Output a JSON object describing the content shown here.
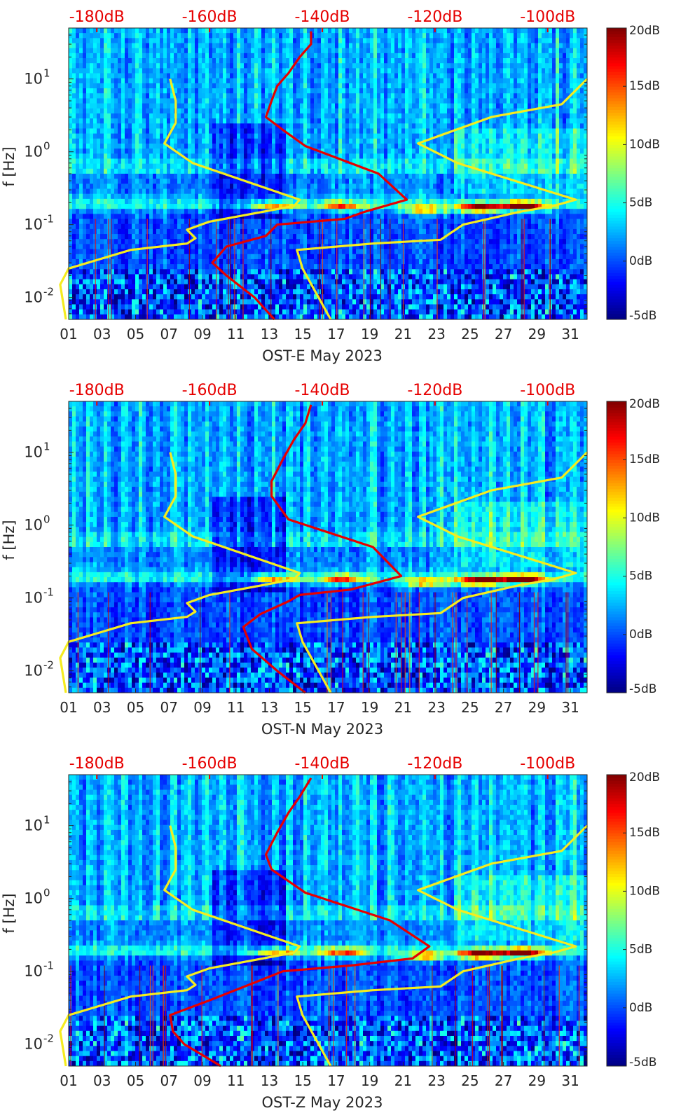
{
  "chart_data": [
    {
      "type": "heatmap",
      "title": "",
      "xlabel": "OST-E May 2023",
      "ylabel": "f [Hz]",
      "xticks": [
        "01",
        "03",
        "05",
        "07",
        "09",
        "11",
        "13",
        "15",
        "17",
        "19",
        "21",
        "23",
        "25",
        "27",
        "29",
        "31"
      ],
      "xlim": [
        1,
        32
      ],
      "yscale": "log",
      "ylim": [
        0.005,
        50
      ],
      "yticks": [
        "10^{-2}",
        "10^{-1}",
        "10^{0}",
        "10^{1}"
      ],
      "colorbar": {
        "ticks": [
          "-5dB",
          "0dB",
          "5dB",
          "10dB",
          "15dB",
          "20dB"
        ],
        "range": [
          -5,
          20
        ],
        "colormap": "jet"
      },
      "top_axis": {
        "ticks": [
          "-180dB",
          "-160dB",
          "-140dB",
          "-120dB",
          "-100dB"
        ],
        "range": [
          -185,
          -93
        ],
        "color": "#e60000"
      },
      "series": [
        {
          "color": "#f5ec1f",
          "points": [
            [
              -185.5,
              0.005
            ],
            [
              -186.5,
              0.015
            ],
            [
              -185,
              0.025
            ],
            [
              -174,
              0.045
            ],
            [
              -164,
              0.055
            ],
            [
              -162.5,
              0.065
            ],
            [
              -164,
              0.085
            ],
            [
              -160,
              0.11
            ],
            [
              -145,
              0.18
            ],
            [
              -144,
              0.22
            ],
            [
              -163,
              0.7
            ],
            [
              -168,
              1.3
            ],
            [
              -166,
              2.5
            ],
            [
              -166,
              5
            ],
            [
              -167,
              10
            ]
          ]
        },
        {
          "color": "#f5ec1f",
          "points": [
            [
              -138.5,
              0.005
            ],
            [
              -143.5,
              0.025
            ],
            [
              -144.5,
              0.045
            ],
            [
              -131,
              0.055
            ],
            [
              -119,
              0.062
            ],
            [
              -115,
              0.1
            ],
            [
              -105,
              0.15
            ],
            [
              -99,
              0.18
            ],
            [
              -95,
              0.22
            ],
            [
              -116,
              0.7
            ],
            [
              -123,
              1.3
            ],
            [
              -110,
              3
            ],
            [
              -97.5,
              4.5
            ],
            [
              -93,
              10
            ]
          ]
        },
        {
          "color": "#e60000",
          "points": [
            [
              -148.5,
              0.005
            ],
            [
              -152,
              0.01
            ],
            [
              -157,
              0.02
            ],
            [
              -159.5,
              0.03
            ],
            [
              -157,
              0.05
            ],
            [
              -150,
              0.07
            ],
            [
              -148,
              0.1
            ],
            [
              -136,
              0.12
            ],
            [
              -132.5,
              0.15
            ],
            [
              -125,
              0.22
            ],
            [
              -130,
              0.5
            ],
            [
              -143,
              1.2
            ],
            [
              -147,
              2
            ],
            [
              -150,
              3
            ],
            [
              -149,
              5
            ],
            [
              -148,
              8
            ],
            [
              -146,
              12
            ],
            [
              -144,
              20
            ],
            [
              -142,
              30
            ],
            [
              -142,
              45
            ]
          ]
        }
      ]
    },
    {
      "type": "heatmap",
      "title": "",
      "xlabel": "OST-N May 2023",
      "ylabel": "f [Hz]",
      "xticks": [
        "01",
        "03",
        "05",
        "07",
        "09",
        "11",
        "13",
        "15",
        "17",
        "19",
        "21",
        "23",
        "25",
        "27",
        "29",
        "31"
      ],
      "xlim": [
        1,
        32
      ],
      "yscale": "log",
      "ylim": [
        0.005,
        50
      ],
      "yticks": [
        "10^{-2}",
        "10^{-1}",
        "10^{0}",
        "10^{1}"
      ],
      "colorbar": {
        "ticks": [
          "-5dB",
          "0dB",
          "5dB",
          "10dB",
          "15dB",
          "20dB"
        ],
        "range": [
          -5,
          20
        ],
        "colormap": "jet"
      },
      "top_axis": {
        "ticks": [
          "-180dB",
          "-160dB",
          "-140dB",
          "-120dB",
          "-100dB"
        ],
        "range": [
          -185,
          -93
        ],
        "color": "#e60000"
      },
      "series": [
        {
          "color": "#f5ec1f",
          "points": [
            [
              -185.5,
              0.005
            ],
            [
              -186.5,
              0.015
            ],
            [
              -185,
              0.025
            ],
            [
              -174,
              0.045
            ],
            [
              -164,
              0.055
            ],
            [
              -162.5,
              0.065
            ],
            [
              -164,
              0.085
            ],
            [
              -160,
              0.11
            ],
            [
              -145,
              0.18
            ],
            [
              -144,
              0.22
            ],
            [
              -163,
              0.7
            ],
            [
              -168,
              1.3
            ],
            [
              -166,
              2.5
            ],
            [
              -166,
              5
            ],
            [
              -167,
              10
            ]
          ]
        },
        {
          "color": "#f5ec1f",
          "points": [
            [
              -138.5,
              0.005
            ],
            [
              -143.5,
              0.025
            ],
            [
              -144.5,
              0.045
            ],
            [
              -131,
              0.055
            ],
            [
              -119,
              0.062
            ],
            [
              -115,
              0.1
            ],
            [
              -105,
              0.15
            ],
            [
              -99,
              0.18
            ],
            [
              -95,
              0.22
            ],
            [
              -116,
              0.7
            ],
            [
              -123,
              1.3
            ],
            [
              -110,
              3
            ],
            [
              -97.5,
              4.5
            ],
            [
              -93,
              10
            ]
          ]
        },
        {
          "color": "#e60000",
          "points": [
            [
              -143,
              0.005
            ],
            [
              -148,
              0.01
            ],
            [
              -152.5,
              0.02
            ],
            [
              -154,
              0.04
            ],
            [
              -151,
              0.06
            ],
            [
              -146,
              0.09
            ],
            [
              -144,
              0.11
            ],
            [
              -135,
              0.13
            ],
            [
              -132,
              0.15
            ],
            [
              -126,
              0.2
            ],
            [
              -131,
              0.5
            ],
            [
              -146,
              1.2
            ],
            [
              -149,
              2.5
            ],
            [
              -149,
              4
            ],
            [
              -147,
              8
            ],
            [
              -145,
              15
            ],
            [
              -143,
              25
            ],
            [
              -142,
              45
            ]
          ]
        }
      ]
    },
    {
      "type": "heatmap",
      "title": "",
      "xlabel": "OST-Z May 2023",
      "ylabel": "f [Hz]",
      "xticks": [
        "01",
        "03",
        "05",
        "07",
        "09",
        "11",
        "13",
        "15",
        "17",
        "19",
        "21",
        "23",
        "25",
        "27",
        "29",
        "31"
      ],
      "xlim": [
        1,
        32
      ],
      "yscale": "log",
      "ylim": [
        0.005,
        50
      ],
      "yticks": [
        "10^{-2}",
        "10^{-1}",
        "10^{0}",
        "10^{1}"
      ],
      "colorbar": {
        "ticks": [
          "-5dB",
          "0dB",
          "5dB",
          "10dB",
          "15dB",
          "20dB"
        ],
        "range": [
          -5,
          20
        ],
        "colormap": "jet"
      },
      "top_axis": {
        "ticks": [
          "-180dB",
          "-160dB",
          "-140dB",
          "-120dB",
          "-100dB"
        ],
        "range": [
          -185,
          -93
        ],
        "color": "#e60000"
      },
      "series": [
        {
          "color": "#f5ec1f",
          "points": [
            [
              -185.5,
              0.005
            ],
            [
              -186.5,
              0.015
            ],
            [
              -185,
              0.025
            ],
            [
              -174,
              0.045
            ],
            [
              -164,
              0.055
            ],
            [
              -162.5,
              0.065
            ],
            [
              -164,
              0.085
            ],
            [
              -160,
              0.11
            ],
            [
              -145,
              0.18
            ],
            [
              -144,
              0.22
            ],
            [
              -163,
              0.7
            ],
            [
              -168,
              1.3
            ],
            [
              -166,
              2.5
            ],
            [
              -166,
              5
            ],
            [
              -167,
              10
            ]
          ]
        },
        {
          "color": "#f5ec1f",
          "points": [
            [
              -138.5,
              0.005
            ],
            [
              -143.5,
              0.025
            ],
            [
              -144.5,
              0.045
            ],
            [
              -131,
              0.055
            ],
            [
              -119,
              0.062
            ],
            [
              -115,
              0.1
            ],
            [
              -105,
              0.15
            ],
            [
              -99,
              0.18
            ],
            [
              -95,
              0.22
            ],
            [
              -116,
              0.7
            ],
            [
              -123,
              1.3
            ],
            [
              -110,
              3
            ],
            [
              -97.5,
              4.5
            ],
            [
              -93,
              10
            ]
          ]
        },
        {
          "color": "#e60000",
          "points": [
            [
              -158,
              0.005
            ],
            [
              -164.5,
              0.01
            ],
            [
              -166.5,
              0.015
            ],
            [
              -167,
              0.025
            ],
            [
              -160,
              0.04
            ],
            [
              -152,
              0.07
            ],
            [
              -147,
              0.1
            ],
            [
              -135,
              0.12
            ],
            [
              -124,
              0.15
            ],
            [
              -121,
              0.22
            ],
            [
              -128,
              0.5
            ],
            [
              -143,
              1.2
            ],
            [
              -149,
              2.5
            ],
            [
              -150,
              4
            ],
            [
              -148,
              8
            ],
            [
              -146,
              15
            ],
            [
              -144,
              25
            ],
            [
              -142,
              45
            ]
          ]
        }
      ]
    }
  ],
  "colors": {
    "top_axis_text": "#e60000",
    "profile_yellow": "#f5ec1f",
    "profile_red": "#e60000",
    "axis_text": "#262626"
  }
}
